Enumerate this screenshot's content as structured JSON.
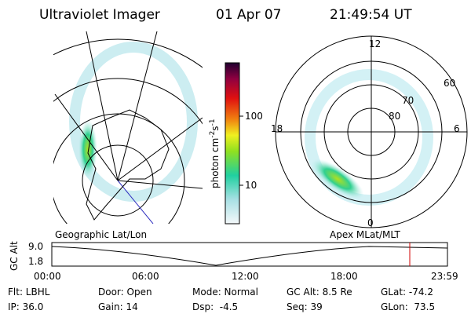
{
  "header": {
    "title": "Ultraviolet Imager",
    "date": "01 Apr 07",
    "time": "21:49:54 UT"
  },
  "colorbar": {
    "ticks": [
      "100",
      "10"
    ],
    "label": [
      "photon cm",
      "-2",
      "s",
      "-1"
    ]
  },
  "polar": {
    "labels": [
      "12",
      "60",
      "70",
      "80",
      "18",
      "6",
      "0"
    ]
  },
  "altitude_panel": {
    "left_title": "Geographic Lat/Lon",
    "right_title": "Apex MLat/MLT",
    "ylabel": "GC Alt",
    "yticks": [
      "9.0",
      "1.8"
    ],
    "xticks": [
      "00:00",
      "06:00",
      "12:00",
      "18:00",
      "23:59"
    ]
  },
  "info": {
    "rows": [
      [
        "Flt: LBHL",
        "Door: Open",
        "Mode: Normal",
        "GC Alt: 8.5 Re",
        "GLat: -74.2"
      ],
      [
        "IP: 36.0",
        "Gain: 14",
        "Dsp:  -4.5",
        "Seq: 39",
        "GLon:  73.5"
      ]
    ]
  }
}
